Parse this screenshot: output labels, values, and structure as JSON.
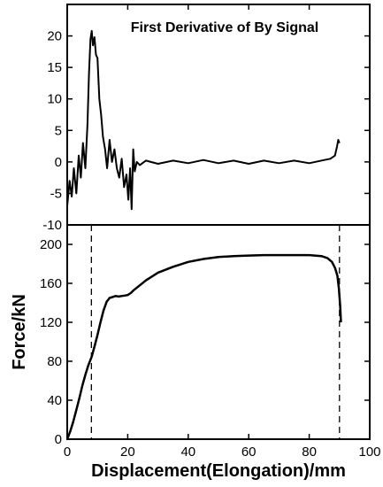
{
  "chart_data": [
    {
      "type": "line",
      "title": "First Derivative of By Signal",
      "xlabel": "",
      "ylabel": "",
      "xlim": [
        0,
        100
      ],
      "ylim": [
        -10,
        25
      ],
      "x_ticks": [],
      "y_ticks": [
        -10,
        -5,
        0,
        5,
        10,
        15,
        20
      ],
      "legend": "none",
      "grid": false,
      "series": [
        {
          "name": "",
          "color": "#000000",
          "x": [
            0,
            0.8,
            1.5,
            2.2,
            3,
            3.8,
            4.5,
            5.2,
            6,
            6.7,
            7.2,
            7.7,
            8.1,
            8.5,
            9.0,
            9.5,
            10.0,
            10.6,
            11.2,
            11.8,
            12.5,
            13.2,
            14,
            14.8,
            15.6,
            16.4,
            17.2,
            18,
            18.8,
            19.6,
            20.2,
            20.8,
            21.3,
            21.8,
            22.3,
            23,
            24,
            26,
            30,
            35,
            40,
            45,
            50,
            55,
            60,
            65,
            70,
            75,
            80,
            85,
            87,
            88.5,
            89.2,
            89.6,
            90
          ],
          "y": [
            -7,
            -3,
            -5.5,
            -1,
            -5,
            1,
            -2.5,
            3,
            -1,
            6,
            14,
            19.5,
            20.8,
            18.5,
            19.8,
            17,
            16.5,
            10,
            7.5,
            4,
            2,
            -1,
            3.5,
            0,
            2,
            -1,
            -2.5,
            0.5,
            -4,
            -2,
            -6,
            -1,
            -7.5,
            2,
            -1.5,
            0,
            -0.5,
            0.2,
            -0.3,
            0.2,
            -0.2,
            0.3,
            -0.2,
            0.2,
            -0.3,
            0.2,
            -0.2,
            0.2,
            -0.2,
            0.3,
            0.5,
            1,
            2.5,
            3.5,
            3
          ]
        }
      ]
    },
    {
      "type": "line",
      "title": "",
      "xlabel": "Displacement(Elongation)/mm",
      "ylabel": "Force/kN",
      "xlim": [
        0,
        100
      ],
      "ylim": [
        0,
        220
      ],
      "x_ticks": [
        0,
        20,
        40,
        60,
        80,
        100
      ],
      "y_ticks": [
        0,
        40,
        80,
        120,
        160,
        200
      ],
      "legend": "none",
      "grid": false,
      "series": [
        {
          "name": "",
          "color": "#000000",
          "x": [
            0,
            1,
            2,
            3,
            4,
            5,
            6,
            7,
            8,
            9,
            10,
            11,
            12,
            13,
            14,
            15,
            16,
            17,
            18,
            19,
            20,
            21,
            22,
            24,
            26,
            28,
            30,
            35,
            40,
            45,
            50,
            55,
            60,
            65,
            70,
            75,
            80,
            84,
            86,
            87.5,
            88.5,
            89.3,
            89.8,
            90.2,
            90.5
          ],
          "y": [
            0,
            8,
            18,
            30,
            42,
            55,
            66,
            76,
            84,
            95,
            107,
            120,
            132,
            141,
            145,
            146,
            147,
            146.5,
            147,
            147.5,
            148,
            150,
            153,
            158,
            163,
            167,
            171,
            177,
            182,
            185,
            187,
            188,
            188.5,
            189,
            189,
            189,
            189,
            188,
            186,
            182,
            176,
            168,
            155,
            138,
            120
          ]
        }
      ],
      "markers": [
        {
          "x": 8,
          "style": "dashed-vertical"
        },
        {
          "x": 90,
          "style": "dashed-vertical"
        }
      ]
    }
  ]
}
